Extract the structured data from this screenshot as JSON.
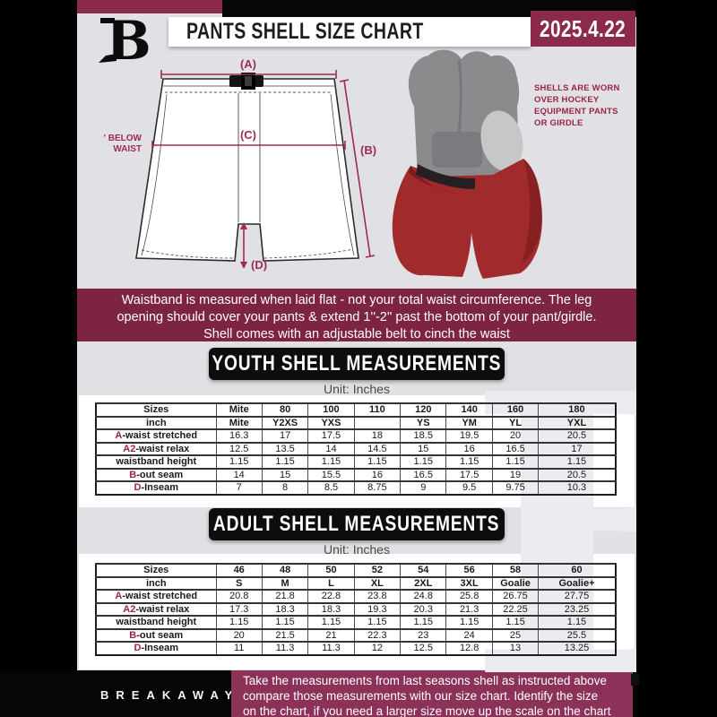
{
  "colors": {
    "maroon_dark": "#7e2443",
    "maroon": "#8c2a4e",
    "maroon_bright": "#8c3157",
    "accent_text": "#9c2445",
    "measure_line": "#9e2b50",
    "page_gray": "#e1e1e5",
    "black": "#060606",
    "shell_red": "#a12a2d"
  },
  "header": {
    "logo_letter": "B",
    "title": "PANTS SHELL SIZE CHART",
    "date": "2025.4.22"
  },
  "diagram": {
    "label_a": "(A)",
    "label_b": "(B)",
    "label_c": "(C)",
    "label_d": "(D)",
    "note_line1": "7'' BELOW",
    "note_line2": "WAIST"
  },
  "photo": {
    "caption_lines": [
      "SHELLS ARE WORN",
      "OVER HOCKEY",
      "EQUIPMENT PANTS",
      "OR GIRDLE"
    ]
  },
  "notice": {
    "lines": [
      "Waistband is measured when laid flat - not your total waist circumference. The leg",
      "opening should cover your pants & extend 1''-2'' past the bottom of your pant/girdle.",
      "Shell comes with an adjustable belt to cinch the waist"
    ]
  },
  "youth": {
    "title": "YOUTH SHELL MEASUREMENTS",
    "unit": "Unit: Inches",
    "table": {
      "rows": [
        {
          "header": true,
          "prefix": "",
          "label": "Sizes",
          "values": [
            "Mite",
            "80",
            "100",
            "110",
            "120",
            "140",
            "160",
            "180"
          ]
        },
        {
          "header": true,
          "prefix": "",
          "label": "inch",
          "values": [
            "Mite",
            "Y2XS",
            "YXS",
            "",
            "YS",
            "YM",
            "YL",
            "YXL"
          ]
        },
        {
          "prefix": "A",
          "label": "-waist stretched",
          "values": [
            "16.3",
            "17",
            "17.5",
            "18",
            "18.5",
            "19.5",
            "20",
            "20.5"
          ]
        },
        {
          "prefix": "A2",
          "label": "-waist relax",
          "values": [
            "12.5",
            "13.5",
            "14",
            "14.5",
            "15",
            "16",
            "16.5",
            "17"
          ]
        },
        {
          "prefix": "",
          "label": "waistband height",
          "values": [
            "1.15",
            "1.15",
            "1.15",
            "1.15",
            "1.15",
            "1.15",
            "1.15",
            "1.15"
          ]
        },
        {
          "prefix": "B",
          "label": "-out seam",
          "values": [
            "14",
            "15",
            "15.5",
            "16",
            "16.5",
            "17.5",
            "19",
            "20.5"
          ]
        },
        {
          "prefix": "D",
          "label": "-Inseam",
          "values": [
            "7",
            "8",
            "8.5",
            "8.75",
            "9",
            "9.5",
            "9.75",
            "10.3"
          ]
        }
      ]
    }
  },
  "adult": {
    "title": "ADULT SHELL MEASUREMENTS",
    "unit": "Unit: Inches",
    "table": {
      "rows": [
        {
          "header": true,
          "prefix": "",
          "label": "Sizes",
          "values": [
            "46",
            "48",
            "50",
            "52",
            "54",
            "56",
            "58",
            "60"
          ]
        },
        {
          "header": true,
          "prefix": "",
          "label": "inch",
          "values": [
            "S",
            "M",
            "L",
            "XL",
            "2XL",
            "3XL",
            "Goalie",
            "Goalie+"
          ]
        },
        {
          "prefix": "A",
          "label": "-waist stretched",
          "values": [
            "20.8",
            "21.8",
            "22.8",
            "23.8",
            "24.8",
            "25.8",
            "26.75",
            "27.75"
          ]
        },
        {
          "prefix": "A2",
          "label": "-waist relax",
          "values": [
            "17.3",
            "18.3",
            "18.3",
            "19.3",
            "20.3",
            "21.3",
            "22.25",
            "23.25"
          ]
        },
        {
          "prefix": "",
          "label": "waistband height",
          "values": [
            "1.15",
            "1.15",
            "1.15",
            "1.15",
            "1.15",
            "1.15",
            "1.15",
            "1.15"
          ]
        },
        {
          "prefix": "B",
          "label": "-out seam",
          "values": [
            "20",
            "21.5",
            "21",
            "22.3",
            "23",
            "24",
            "25",
            "25.5"
          ]
        },
        {
          "prefix": "D",
          "label": "-Inseam",
          "values": [
            "11",
            "11.3",
            "11.3",
            "12",
            "12.5",
            "12.8",
            "13",
            "13.25"
          ]
        }
      ]
    }
  },
  "footer": {
    "logo_letter": "B",
    "brand": "BREAKAWAY",
    "lines": [
      "Take the measurements from last seasons shell as instructed above",
      "compare those measurements  with our size chart. Identify the size",
      "on the chart, if you need a larger size move up the scale on the chart"
    ]
  },
  "watermark_letter": "B"
}
